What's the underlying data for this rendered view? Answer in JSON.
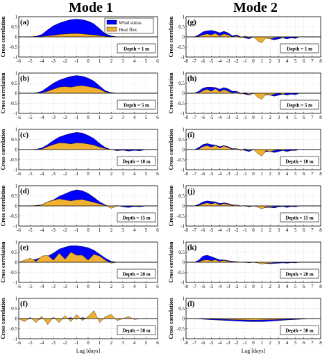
{
  "columns": [
    {
      "title": "Mode 1"
    },
    {
      "title": "Mode 2"
    }
  ],
  "colors": {
    "wind": "#0000ff",
    "heat": "#f0b030",
    "axis": "#000000",
    "grid": "#d0d0d0"
  },
  "legend": {
    "wind_label": "Wind stress",
    "heat_label": "Heat flux"
  },
  "ylabel": "Cross correlation",
  "xlabel": "Lag [days]",
  "chart_data": [
    {
      "type": "area",
      "panel": "(a)",
      "column": "Mode 1",
      "depth_label": "Depth = 1 m",
      "xlim": [
        -6,
        6
      ],
      "ylim": [
        -1,
        1
      ],
      "x": [
        -6,
        -5,
        -4.5,
        -4,
        -3.5,
        -3,
        -2.5,
        -2,
        -1.5,
        -1,
        -0.5,
        0,
        0.5,
        1,
        1.5,
        2,
        2.5,
        3,
        4,
        5,
        6
      ],
      "series": [
        {
          "name": "Wind stress",
          "values": [
            0,
            0,
            0.03,
            0.12,
            0.35,
            0.55,
            0.68,
            0.78,
            0.85,
            0.88,
            0.85,
            0.78,
            0.65,
            0.4,
            0.15,
            0.05,
            0,
            0,
            0,
            0,
            0
          ]
        },
        {
          "name": "Heat flux",
          "values": [
            0,
            0,
            0,
            0.02,
            0.05,
            0.08,
            0.12,
            0.14,
            0.16,
            0.17,
            0.15,
            0.12,
            0.1,
            0.06,
            0.03,
            0,
            0,
            0,
            0,
            0,
            0
          ]
        }
      ]
    },
    {
      "type": "area",
      "panel": "(b)",
      "column": "Mode 1",
      "depth_label": "Depth = 5 m",
      "xlim": [
        -6,
        6
      ],
      "ylim": [
        -1,
        1
      ],
      "x": [
        -6,
        -5,
        -4.5,
        -4,
        -3.5,
        -3,
        -2.5,
        -2,
        -1.5,
        -1,
        -0.5,
        0,
        0.5,
        1,
        1.5,
        2,
        2.5,
        3,
        4,
        5,
        6
      ],
      "series": [
        {
          "name": "Wind stress",
          "values": [
            0,
            0,
            0.02,
            0.1,
            0.3,
            0.5,
            0.65,
            0.75,
            0.83,
            0.88,
            0.84,
            0.75,
            0.6,
            0.35,
            0.12,
            0.03,
            0,
            0,
            0,
            0,
            0
          ]
        },
        {
          "name": "Heat flux",
          "values": [
            0,
            0,
            0,
            0.02,
            0.1,
            0.2,
            0.3,
            0.33,
            0.3,
            0.35,
            0.38,
            0.33,
            0.28,
            0.2,
            0.06,
            0,
            0,
            0,
            0,
            0,
            0
          ]
        }
      ]
    },
    {
      "type": "area",
      "panel": "(c)",
      "column": "Mode 1",
      "depth_label": "Depth = 10 m",
      "xlim": [
        -6,
        6
      ],
      "ylim": [
        -1,
        1
      ],
      "x": [
        -6,
        -5,
        -4.5,
        -4,
        -3.5,
        -3,
        -2.5,
        -2,
        -1.5,
        -1,
        -0.5,
        0,
        0.5,
        1,
        1.5,
        2,
        2.5,
        3,
        3.5,
        4,
        4.5,
        5,
        6
      ],
      "series": [
        {
          "name": "Wind stress",
          "values": [
            0,
            0,
            0.02,
            0.08,
            0.25,
            0.45,
            0.62,
            0.72,
            0.8,
            0.85,
            0.82,
            0.7,
            0.55,
            0.3,
            0.1,
            0,
            -0.06,
            -0.03,
            -0.08,
            -0.04,
            -0.06,
            0,
            0
          ]
        },
        {
          "name": "Heat flux",
          "values": [
            0,
            0,
            0,
            0.02,
            0.15,
            0.25,
            0.33,
            0.32,
            0.28,
            0.33,
            0.32,
            0.28,
            0.22,
            0.12,
            0.05,
            0,
            -0.02,
            0,
            -0.02,
            0,
            0,
            0,
            0
          ]
        }
      ]
    },
    {
      "type": "area",
      "panel": "(d)",
      "column": "Mode 1",
      "depth_label": "Depth = 15 m",
      "xlim": [
        -6,
        6
      ],
      "ylim": [
        -1,
        1
      ],
      "x": [
        -6,
        -5,
        -4.5,
        -4,
        -3.5,
        -3,
        -2.5,
        -2,
        -1.5,
        -1,
        -0.5,
        0,
        0.5,
        1,
        1.5,
        2,
        2.5,
        3,
        3.5,
        4,
        4.5,
        5,
        6
      ],
      "series": [
        {
          "name": "Wind stress",
          "values": [
            0,
            0,
            0.02,
            0.06,
            0.2,
            0.3,
            0.48,
            0.6,
            0.72,
            0.8,
            0.75,
            0.62,
            0.42,
            0.2,
            0.05,
            -0.1,
            0.02,
            -0.05,
            -0.08,
            -0.03,
            -0.05,
            0,
            0
          ]
        },
        {
          "name": "Heat flux",
          "values": [
            0,
            0,
            0,
            0.05,
            0.2,
            0.28,
            0.35,
            0.3,
            0.25,
            0.3,
            0.32,
            0.25,
            0.18,
            0.1,
            0.02,
            -0.12,
            0,
            -0.02,
            0,
            0,
            0,
            0,
            0
          ]
        }
      ]
    },
    {
      "type": "area",
      "panel": "(e)",
      "column": "Mode 1",
      "depth_label": "Depth = 20 m",
      "xlim": [
        -6,
        6
      ],
      "ylim": [
        -1,
        1
      ],
      "x": [
        -6,
        -5.5,
        -5,
        -4.5,
        -4,
        -3.5,
        -3,
        -2.5,
        -2,
        -1.5,
        -1,
        -0.5,
        0,
        0.5,
        1,
        1.5,
        2,
        2.5,
        3,
        4,
        5,
        6
      ],
      "series": [
        {
          "name": "Wind stress",
          "values": [
            0,
            0.05,
            0.1,
            0.15,
            0.25,
            0.3,
            0.45,
            0.65,
            0.75,
            0.82,
            0.82,
            0.78,
            0.72,
            0.6,
            0.4,
            0.2,
            0.05,
            0,
            0,
            0,
            0,
            0
          ]
        },
        {
          "name": "Heat flux",
          "values": [
            0,
            0.1,
            0.2,
            0.05,
            0.3,
            0.35,
            0.1,
            0.45,
            0.15,
            0.5,
            0.35,
            0.35,
            0.1,
            0.4,
            0.3,
            0.1,
            -0.05,
            0,
            0,
            0,
            0,
            0
          ]
        }
      ]
    },
    {
      "type": "area",
      "panel": "(f)",
      "column": "Mode 1",
      "depth_label": "Depth = 30 m",
      "xlim": [
        -6,
        6
      ],
      "ylim": [
        -1,
        1
      ],
      "x": [
        -6,
        -5.5,
        -5,
        -4.5,
        -4,
        -3.5,
        -3,
        -2.5,
        -2,
        -1.5,
        -1,
        -0.5,
        0,
        0.5,
        1,
        1.5,
        2,
        2.5,
        3,
        3.5,
        4,
        4.5,
        5,
        5.5,
        6
      ],
      "series": [
        {
          "name": "Wind stress",
          "values": [
            0,
            -0.05,
            0.05,
            -0.1,
            0,
            -0.05,
            0.05,
            -0.05,
            0,
            0.05,
            -0.03,
            0.05,
            0,
            0.1,
            -0.05,
            0,
            0.03,
            -0.03,
            0,
            0.02,
            -0.02,
            0,
            0,
            0,
            0
          ]
        },
        {
          "name": "Heat flux",
          "values": [
            0,
            -0.15,
            0.05,
            -0.2,
            0.12,
            -0.3,
            0.08,
            -0.2,
            0.15,
            -0.15,
            0.2,
            -0.1,
            0.1,
            0.4,
            -0.2,
            0.1,
            0.2,
            -0.1,
            0,
            0.1,
            -0.05,
            0,
            0,
            0,
            0
          ]
        }
      ]
    },
    {
      "type": "area",
      "panel": "(g)",
      "column": "Mode 2",
      "depth_label": "Depth = 1 m",
      "xlim": [
        -8,
        8
      ],
      "ylim": [
        -1,
        1
      ],
      "x": [
        -8,
        -7,
        -6.5,
        -6,
        -5.5,
        -5,
        -4.5,
        -4,
        -3.5,
        -3,
        -2.5,
        -2,
        -1.5,
        -1,
        -0.5,
        0,
        0.5,
        1,
        1.5,
        2,
        2.5,
        3,
        3.5,
        4,
        4.5,
        5,
        5.5,
        6,
        7,
        8
      ],
      "series": [
        {
          "name": "Wind stress",
          "values": [
            0,
            0,
            0.1,
            0.25,
            0.3,
            0.32,
            0.28,
            0.2,
            0.28,
            0.2,
            0.05,
            0.1,
            0,
            -0.05,
            -0.1,
            0,
            -0.15,
            -0.2,
            -0.05,
            -0.1,
            -0.15,
            -0.1,
            -0.05,
            -0.1,
            -0.05,
            -0.08,
            0,
            0,
            0,
            0
          ]
        },
        {
          "name": "Heat flux",
          "values": [
            0,
            0,
            0.02,
            0.1,
            0.15,
            0.1,
            0.18,
            0.05,
            0.15,
            0.1,
            0,
            0.05,
            -0.05,
            0.05,
            -0.05,
            0.02,
            -0.2,
            -0.3,
            -0.05,
            -0.1,
            -0.05,
            0,
            -0.05,
            0,
            0,
            0,
            0,
            0,
            0,
            0
          ]
        }
      ]
    },
    {
      "type": "area",
      "panel": "(h)",
      "column": "Mode 2",
      "depth_label": "Depth = 5 m",
      "xlim": [
        -8,
        8
      ],
      "ylim": [
        -1,
        1
      ],
      "x": [
        -8,
        -7,
        -6.5,
        -6,
        -5.5,
        -5,
        -4.5,
        -4,
        -3.5,
        -3,
        -2.5,
        -2,
        -1.5,
        -1,
        -0.5,
        0,
        0.5,
        1,
        1.5,
        2,
        2.5,
        3,
        3.5,
        4,
        4.5,
        5,
        5.5,
        6,
        7,
        8
      ],
      "series": [
        {
          "name": "Wind stress",
          "values": [
            0,
            0,
            0.1,
            0.25,
            0.3,
            0.3,
            0.28,
            0.2,
            0.28,
            0.22,
            0.1,
            0.1,
            0,
            -0.05,
            -0.1,
            0,
            -0.15,
            -0.2,
            -0.08,
            -0.1,
            -0.15,
            -0.1,
            -0.05,
            -0.1,
            -0.05,
            -0.08,
            0,
            0,
            0,
            0
          ]
        },
        {
          "name": "Heat flux",
          "values": [
            0,
            0,
            0.02,
            0.12,
            0.2,
            0.1,
            0.22,
            0.08,
            0.18,
            0.1,
            0.02,
            0.05,
            -0.05,
            0.05,
            -0.08,
            0.02,
            -0.2,
            -0.3,
            -0.05,
            -0.1,
            -0.05,
            0,
            -0.05,
            0,
            0,
            0,
            0,
            0,
            0,
            0
          ]
        }
      ]
    },
    {
      "type": "area",
      "panel": "(i)",
      "column": "Mode 2",
      "depth_label": "Depth = 10 m",
      "xlim": [
        -8,
        8
      ],
      "ylim": [
        -1,
        1
      ],
      "x": [
        -8,
        -7,
        -6.5,
        -6,
        -5.5,
        -5,
        -4.5,
        -4,
        -3.5,
        -3,
        -2.5,
        -2,
        -1.5,
        -1,
        -0.5,
        0,
        0.5,
        1,
        1.5,
        2,
        2.5,
        3,
        3.5,
        4,
        4.5,
        5,
        5.5,
        6,
        7,
        8
      ],
      "series": [
        {
          "name": "Wind stress",
          "values": [
            0,
            0,
            0.1,
            0.25,
            0.3,
            0.25,
            0.22,
            0.15,
            0.2,
            0.15,
            0.05,
            0.05,
            0,
            -0.05,
            -0.1,
            0,
            -0.15,
            -0.25,
            -0.1,
            -0.1,
            -0.15,
            -0.1,
            -0.05,
            -0.1,
            -0.05,
            -0.05,
            0,
            0,
            0,
            0
          ]
        },
        {
          "name": "Heat flux",
          "values": [
            0,
            0,
            0.02,
            0.15,
            0.2,
            0.12,
            0.2,
            0.08,
            0.18,
            0.1,
            0.02,
            0.05,
            -0.05,
            0.05,
            -0.05,
            0.02,
            -0.2,
            -0.32,
            -0.05,
            -0.1,
            -0.05,
            0,
            -0.05,
            0,
            0,
            0,
            0,
            0,
            0,
            0
          ]
        }
      ]
    },
    {
      "type": "area",
      "panel": "(j)",
      "column": "Mode 2",
      "depth_label": "Depth = 15 m",
      "xlim": [
        -8,
        8
      ],
      "ylim": [
        -1,
        1
      ],
      "x": [
        -8,
        -7,
        -6.5,
        -6,
        -5.5,
        -5,
        -4.5,
        -4,
        -3.5,
        -3,
        -2.5,
        -2,
        -1.5,
        -1,
        -0.5,
        0,
        0.5,
        1,
        1.5,
        2,
        2.5,
        3,
        3.5,
        4,
        4.5,
        5,
        5.5,
        6,
        7,
        8
      ],
      "series": [
        {
          "name": "Wind stress",
          "values": [
            0,
            0,
            0.08,
            0.2,
            0.25,
            0.22,
            0.2,
            0.12,
            0.15,
            0.12,
            0.05,
            0.05,
            0,
            0,
            -0.05,
            0,
            -0.05,
            -0.12,
            -0.08,
            -0.08,
            -0.1,
            -0.05,
            -0.03,
            -0.08,
            -0.03,
            -0.05,
            0,
            0,
            0,
            0
          ]
        },
        {
          "name": "Heat flux",
          "values": [
            0,
            0,
            0.02,
            0.1,
            0.15,
            0.1,
            0.15,
            0.05,
            0.12,
            0.08,
            0.02,
            0.05,
            -0.02,
            0.02,
            -0.02,
            0,
            -0.05,
            -0.15,
            -0.05,
            -0.05,
            -0.03,
            0,
            -0.02,
            0,
            0,
            0,
            0,
            0,
            0,
            0
          ]
        }
      ]
    },
    {
      "type": "area",
      "panel": "(k)",
      "column": "Mode 2",
      "depth_label": "Depth = 20 m",
      "xlim": [
        -8,
        8
      ],
      "ylim": [
        -1,
        1
      ],
      "x": [
        -8,
        -7,
        -6.5,
        -6,
        -5.5,
        -5,
        -4.5,
        -4,
        -3.5,
        -3,
        -2.5,
        -2,
        -1.5,
        -1,
        -0.5,
        0,
        0.5,
        1,
        1.5,
        2,
        2.5,
        3,
        3.5,
        4,
        4.5,
        5,
        5.5,
        6,
        7,
        8
      ],
      "series": [
        {
          "name": "Wind stress",
          "values": [
            0,
            0,
            0.1,
            0.3,
            0.35,
            0.28,
            0.2,
            0.12,
            0.12,
            0.08,
            0.05,
            0.03,
            0,
            0,
            -0.03,
            0,
            -0.03,
            -0.08,
            -0.06,
            -0.08,
            -0.06,
            -0.05,
            -0.03,
            -0.05,
            -0.02,
            -0.03,
            0,
            0,
            0,
            0
          ]
        },
        {
          "name": "Heat flux",
          "values": [
            0,
            0,
            0.02,
            0.1,
            0.12,
            0.08,
            0.12,
            0.05,
            0.1,
            0.05,
            0.02,
            0.03,
            0,
            0.02,
            -0.02,
            0,
            -0.03,
            -0.1,
            -0.04,
            -0.05,
            -0.02,
            0,
            -0.01,
            0,
            0,
            0,
            0,
            0,
            0,
            0
          ]
        }
      ]
    },
    {
      "type": "area",
      "panel": "(l)",
      "column": "Mode 2",
      "depth_label": "Depth = 30 m",
      "xlim": [
        -8,
        8
      ],
      "ylim": [
        -1,
        1
      ],
      "x": [
        -8,
        -7,
        -6,
        -5,
        -4,
        -3,
        -2,
        -1,
        0,
        1,
        2,
        3,
        4,
        5,
        6,
        7,
        8
      ],
      "series": [
        {
          "name": "Wind stress",
          "values": [
            0,
            0,
            -0.03,
            -0.06,
            -0.08,
            -0.1,
            -0.12,
            -0.14,
            -0.15,
            -0.15,
            -0.13,
            -0.1,
            -0.07,
            -0.05,
            -0.02,
            0,
            0
          ]
        },
        {
          "name": "Heat flux",
          "values": [
            0,
            0,
            -0.01,
            -0.02,
            -0.03,
            -0.05,
            -0.06,
            -0.07,
            -0.08,
            -0.07,
            -0.06,
            -0.05,
            -0.03,
            -0.02,
            -0.01,
            0,
            0
          ]
        }
      ]
    }
  ]
}
